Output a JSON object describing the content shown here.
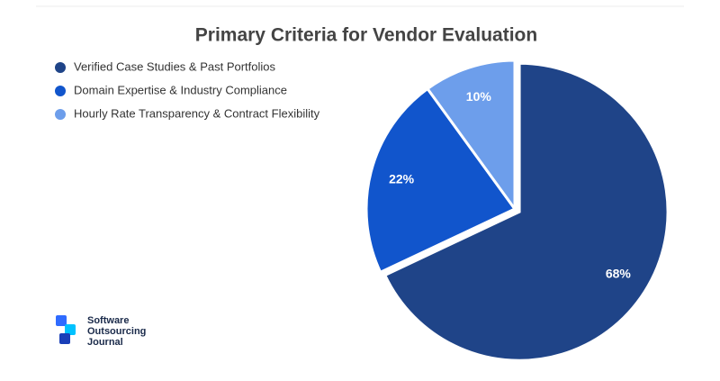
{
  "chart_data": {
    "type": "pie",
    "title": "Primary Criteria for Vendor Evaluation",
    "categories": [
      "Verified Case Studies & Past Portfolios",
      "Domain Expertise & Industry Compliance",
      "Hourly Rate Transparency & Contract Flexibility"
    ],
    "values": [
      68,
      22,
      10
    ],
    "value_labels": [
      "68%",
      "22%",
      "10%"
    ],
    "colors": [
      "#1f4488",
      "#1155cc",
      "#6d9eeb"
    ],
    "legend": "top-left"
  },
  "logo": {
    "lines": [
      "Software",
      "Outsourcing",
      "Journal"
    ]
  }
}
